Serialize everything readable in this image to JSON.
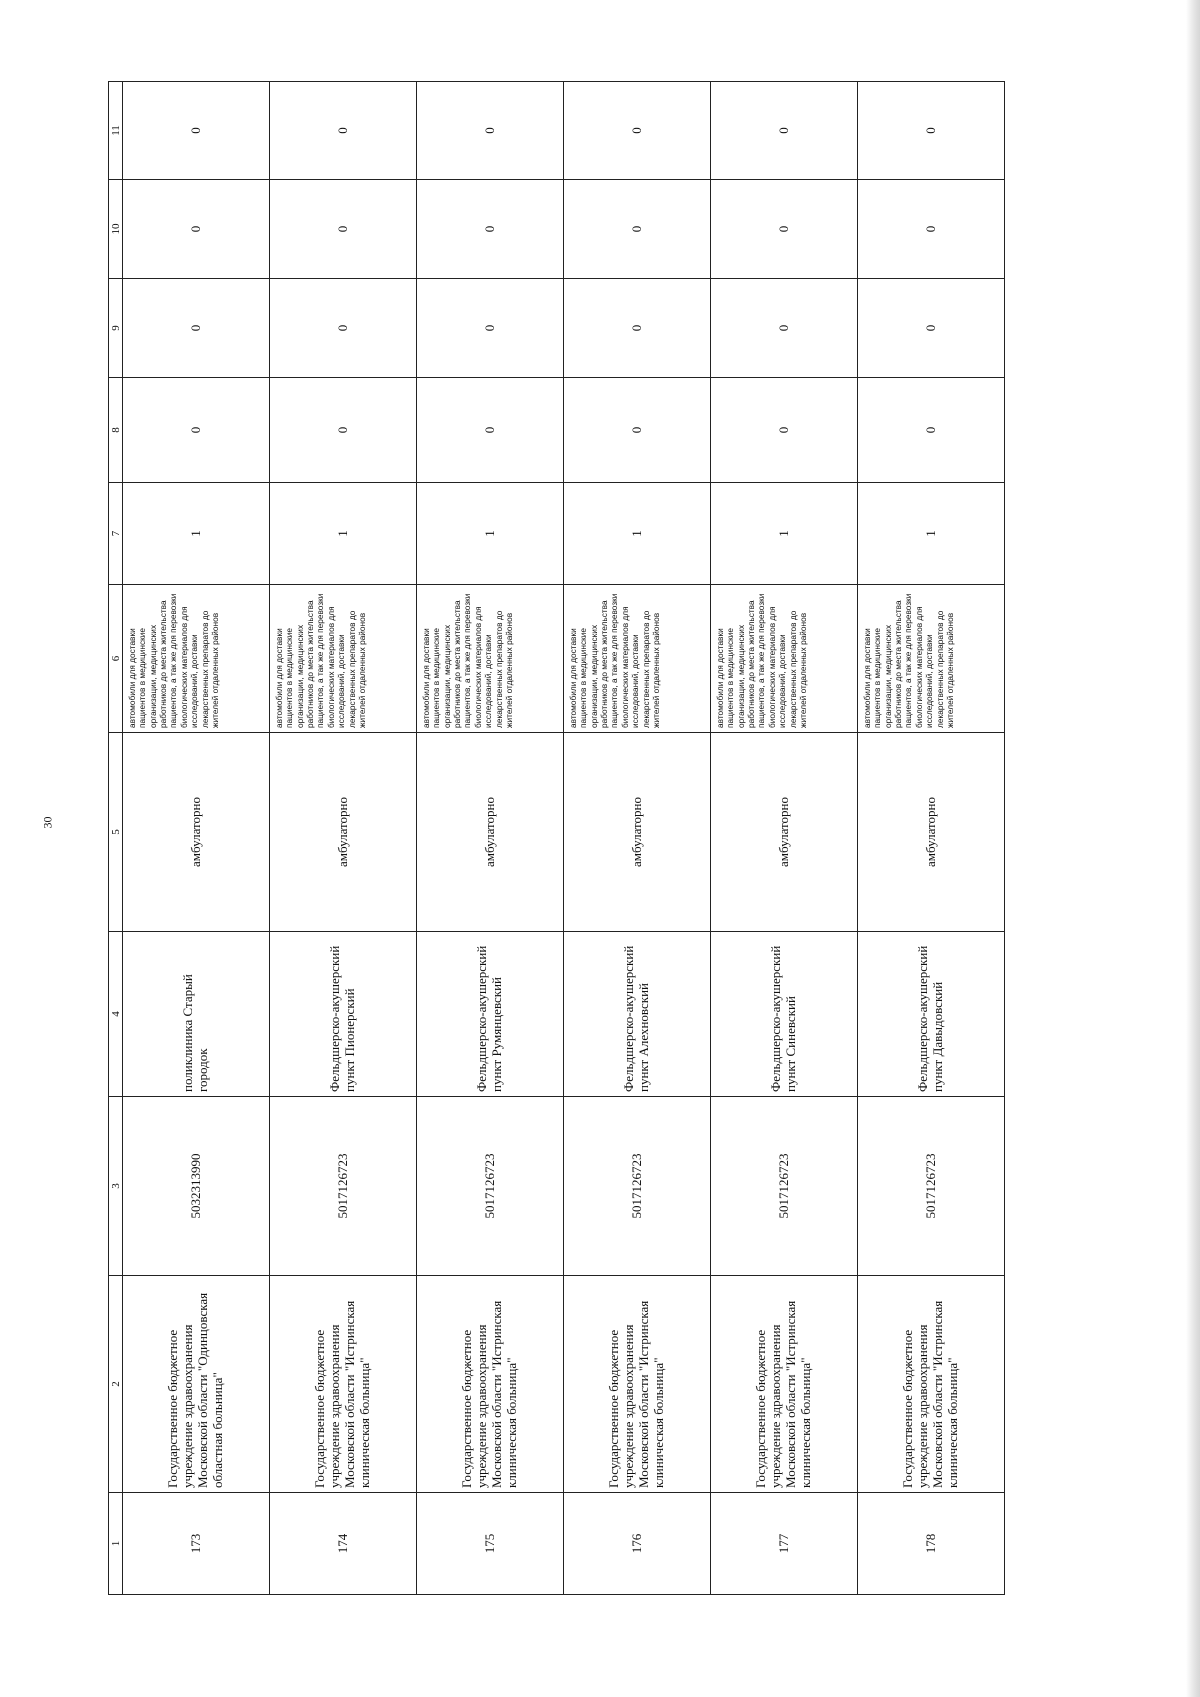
{
  "page_number": "30",
  "table": {
    "column_numbers": [
      "1",
      "2",
      "3",
      "4",
      "5",
      "6",
      "7",
      "8",
      "9",
      "10",
      "11"
    ],
    "rows": [
      {
        "num": "173",
        "org": "Государственное бюджетное учреждение здравоохранения Московской области \"Одинцовская областная больница\"",
        "inn": "5032313990",
        "unit": "поликлиника Старый городок",
        "mode": "амбулаторно",
        "purpose": "автомобили для доставки пациентов в медицинские организации, медицинских работников до места жительства пациентов, а так же для перевозки биологических материалов для исследований, доставки лекарственных препаратов до жителей отдаленных районов",
        "c7": "1",
        "c8": "0",
        "c9": "0",
        "c10": "0",
        "c11": "0"
      },
      {
        "num": "174",
        "org": "Государственное бюджетное учреждение здравоохранения Московской области \"Истринская клиническая больница\"",
        "inn": "5017126723",
        "unit": "Фельдшерско-акушерский пункт Пионерский",
        "mode": "амбулаторно",
        "purpose": "автомобили для доставки пациентов в медицинские организации, медицинских работников до места жительства пациентов, а так же для перевозки биологических материалов для исследований, доставки лекарственных препаратов до жителей отдаленных районов",
        "c7": "1",
        "c8": "0",
        "c9": "0",
        "c10": "0",
        "c11": "0"
      },
      {
        "num": "175",
        "org": "Государственное бюджетное учреждение здравоохранения Московской области \"Истринская клиническая больница\"",
        "inn": "5017126723",
        "unit": "Фельдшерско-акушерский пункт Румянцевский",
        "mode": "амбулаторно",
        "purpose": "автомобили для доставки пациентов в медицинские организации, медицинских работников до места жительства пациентов, а так же для перевозки биологических материалов для исследований, доставки лекарственных препаратов до жителей отдаленных районов",
        "c7": "1",
        "c8": "0",
        "c9": "0",
        "c10": "0",
        "c11": "0"
      },
      {
        "num": "176",
        "org": "Государственное бюджетное учреждение здравоохранения Московской области \"Истринская клиническая больница\"",
        "inn": "5017126723",
        "unit": "Фельдшерско-акушерский пункт Алехновский",
        "mode": "амбулаторно",
        "purpose": "автомобили для доставки пациентов в медицинские организации, медицинских работников до места жительства пациентов, а так же для перевозки биологических материалов для исследований, доставки лекарственных препаратов до жителей отдаленных районов",
        "c7": "1",
        "c8": "0",
        "c9": "0",
        "c10": "0",
        "c11": "0"
      },
      {
        "num": "177",
        "org": "Государственное бюджетное учреждение здравоохранения Московской области \"Истринская клиническая больница\"",
        "inn": "5017126723",
        "unit": "Фельдшерско-акушерский пункт Синевский",
        "mode": "амбулаторно",
        "purpose": "автомобили для доставки пациентов в медицинские организации, медицинских работников до места жительства пациентов, а так же для перевозки биологических материалов для исследований, доставки лекарственных препаратов до жителей отдаленных районов",
        "c7": "1",
        "c8": "0",
        "c9": "0",
        "c10": "0",
        "c11": "0"
      },
      {
        "num": "178",
        "org": "Государственное бюджетное учреждение здравоохранения Московской области \"Истринская клиническая больница\"",
        "inn": "5017126723",
        "unit": "Фельдшерско-акушерский пункт Давыдовский",
        "mode": "амбулаторно",
        "purpose": "автомобили для доставки пациентов в медицинские организации, медицинских работников до места жительства пациентов, а так же для перевозки биологических материалов для исследований, доставки лекарственных препаратов до жителей отдаленных районов",
        "c7": "1",
        "c8": "0",
        "c9": "0",
        "c10": "0",
        "c11": "0"
      }
    ]
  }
}
